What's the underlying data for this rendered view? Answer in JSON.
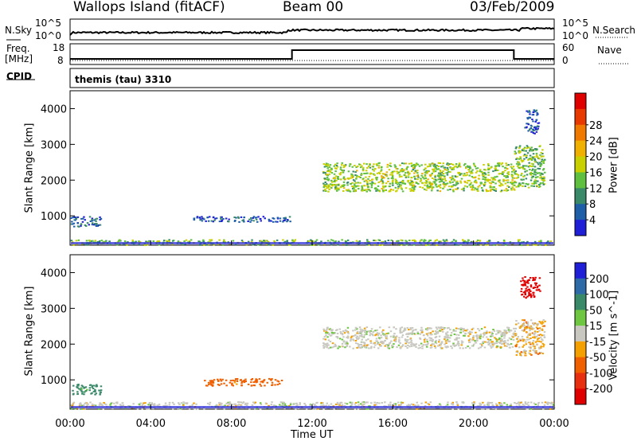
{
  "header": {
    "station": "Wallops Island (fitACF)",
    "beam": "Beam 00",
    "date": "03/Feb/2009"
  },
  "top_panels": {
    "nsky_label": "N.Sky",
    "nsky_ticks": [
      "10^5",
      "10^0"
    ],
    "nsearch_label": "N.Search",
    "nsearch_ticks": [
      "10^5",
      "10^0"
    ],
    "freq_label": "Freq.",
    "freq_unit": "[MHz]",
    "freq_ticks": [
      "18",
      "8"
    ],
    "nave_label": "Nave",
    "nave_ticks": [
      "60",
      "0"
    ],
    "cpid_label": "CPID",
    "cpid_value": "themis (tau) 3310"
  },
  "chart_data": [
    {
      "type": "heatmap",
      "title": "",
      "xlabel": "Time UT",
      "ylabel": "Slant Range [km]",
      "x_ticks": [
        "00:00",
        "04:00",
        "08:00",
        "12:00",
        "16:00",
        "20:00",
        "00:00"
      ],
      "y_ticks": [
        1000,
        2000,
        3000,
        4000
      ],
      "xlim": [
        0,
        24
      ],
      "ylim": [
        180,
        4500
      ],
      "colorbar": {
        "label": "Power [dB]",
        "ticks": [
          4,
          8,
          12,
          16,
          20,
          24,
          28
        ],
        "colors": [
          "#1f1fd8",
          "#1f5fa8",
          "#3a8a6a",
          "#5fbf3f",
          "#c8d000",
          "#f0b000",
          "#f07a00",
          "#e83a00",
          "#e00000"
        ]
      },
      "regions": [
        {
          "t0": 0.0,
          "t1": 1.5,
          "r0": 700,
          "r1": 1000,
          "value": 6
        },
        {
          "t0": 0.0,
          "t1": 24.0,
          "r0": 200,
          "r1": 350,
          "value": 14
        },
        {
          "t0": 6.0,
          "t1": 11.0,
          "r0": 850,
          "r1": 1000,
          "value": 5
        },
        {
          "t0": 12.5,
          "t1": 22.0,
          "r0": 1700,
          "r1": 2500,
          "value": 16
        },
        {
          "t0": 22.0,
          "t1": 23.5,
          "r0": 1800,
          "r1": 3000,
          "value": 14
        },
        {
          "t0": 22.5,
          "t1": 23.2,
          "r0": 3300,
          "r1": 4000,
          "value": 6
        }
      ]
    },
    {
      "type": "heatmap",
      "title": "",
      "xlabel": "Time UT",
      "ylabel": "Slant Range [km]",
      "x_ticks": [
        "00:00",
        "04:00",
        "08:00",
        "12:00",
        "16:00",
        "20:00",
        "00:00"
      ],
      "y_ticks": [
        1000,
        2000,
        3000,
        4000
      ],
      "xlim": [
        0,
        24
      ],
      "ylim": [
        180,
        4500
      ],
      "colorbar": {
        "label": "Velocity [m s^-1]",
        "ticks": [
          "200",
          "100",
          "50",
          "15",
          "-15",
          "-50",
          "-100",
          "-200"
        ],
        "colors": [
          "#1f1fd8",
          "#2f6aa8",
          "#3a8a6a",
          "#6fc640",
          "#c8c8c0",
          "#f4a000",
          "#f06000",
          "#e83010",
          "#e00000"
        ]
      },
      "regions": [
        {
          "t0": 0.0,
          "t1": 1.5,
          "r0": 600,
          "r1": 900,
          "value": 50
        },
        {
          "t0": 0.0,
          "t1": 24.0,
          "r0": 200,
          "r1": 400,
          "value": 0
        },
        {
          "t0": 6.5,
          "t1": 10.5,
          "r0": 850,
          "r1": 1050,
          "value": -50
        },
        {
          "t0": 12.5,
          "t1": 22.0,
          "r0": 1900,
          "r1": 2500,
          "value": 0
        },
        {
          "t0": 22.3,
          "t1": 23.3,
          "r0": 3300,
          "r1": 3900,
          "value": -200
        },
        {
          "t0": 22.0,
          "t1": 23.5,
          "r0": 1700,
          "r1": 2700,
          "value": -15
        }
      ]
    }
  ]
}
